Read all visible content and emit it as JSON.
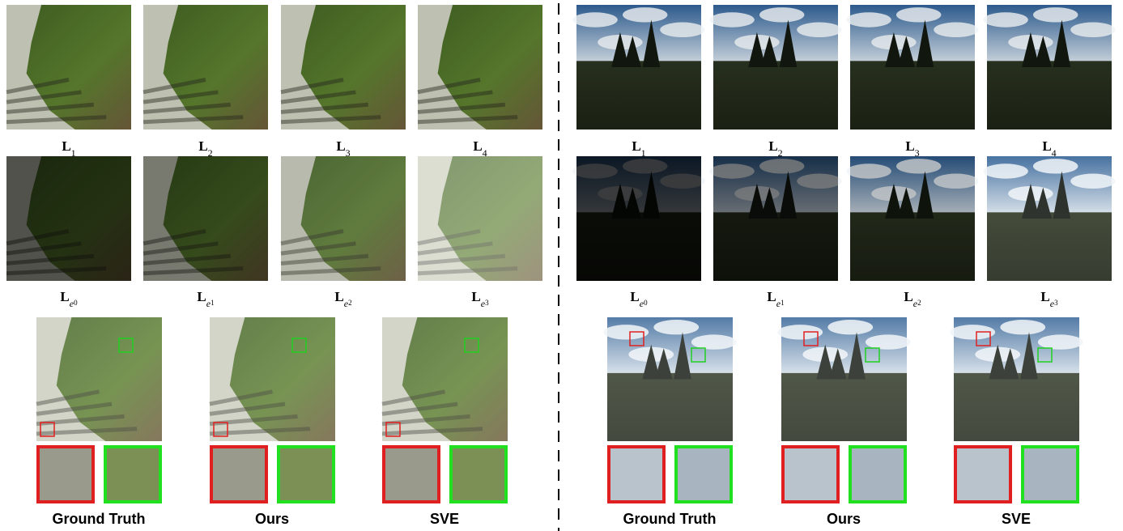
{
  "panels": [
    {
      "row1": [
        {
          "main": "L",
          "sub": "1"
        },
        {
          "main": "L",
          "sub": "2"
        },
        {
          "main": "L",
          "sub": "3"
        },
        {
          "main": "L",
          "sub": "4"
        }
      ],
      "row2": [
        {
          "main": "L",
          "sub": "e",
          "sub2": "0"
        },
        {
          "main": "L",
          "sub": "e",
          "sub2": "1"
        },
        {
          "main": "L",
          "sub": "e",
          "sub2": "2"
        },
        {
          "main": "L",
          "sub": "e",
          "sub2": "3"
        }
      ],
      "methods": [
        "Ground Truth",
        "Ours",
        "SVE"
      ]
    },
    {
      "row1": [
        {
          "main": "L",
          "sub": "1"
        },
        {
          "main": "L",
          "sub": "2"
        },
        {
          "main": "L",
          "sub": "3"
        },
        {
          "main": "L",
          "sub": "4"
        }
      ],
      "row2": [
        {
          "main": "L",
          "sub": "e",
          "sub2": "0"
        },
        {
          "main": "L",
          "sub": "e",
          "sub2": "1"
        },
        {
          "main": "L",
          "sub": "e",
          "sub2": "2"
        },
        {
          "main": "L",
          "sub": "e",
          "sub2": "3"
        }
      ],
      "methods": [
        "Ground Truth",
        "Ours",
        "SVE"
      ]
    }
  ]
}
